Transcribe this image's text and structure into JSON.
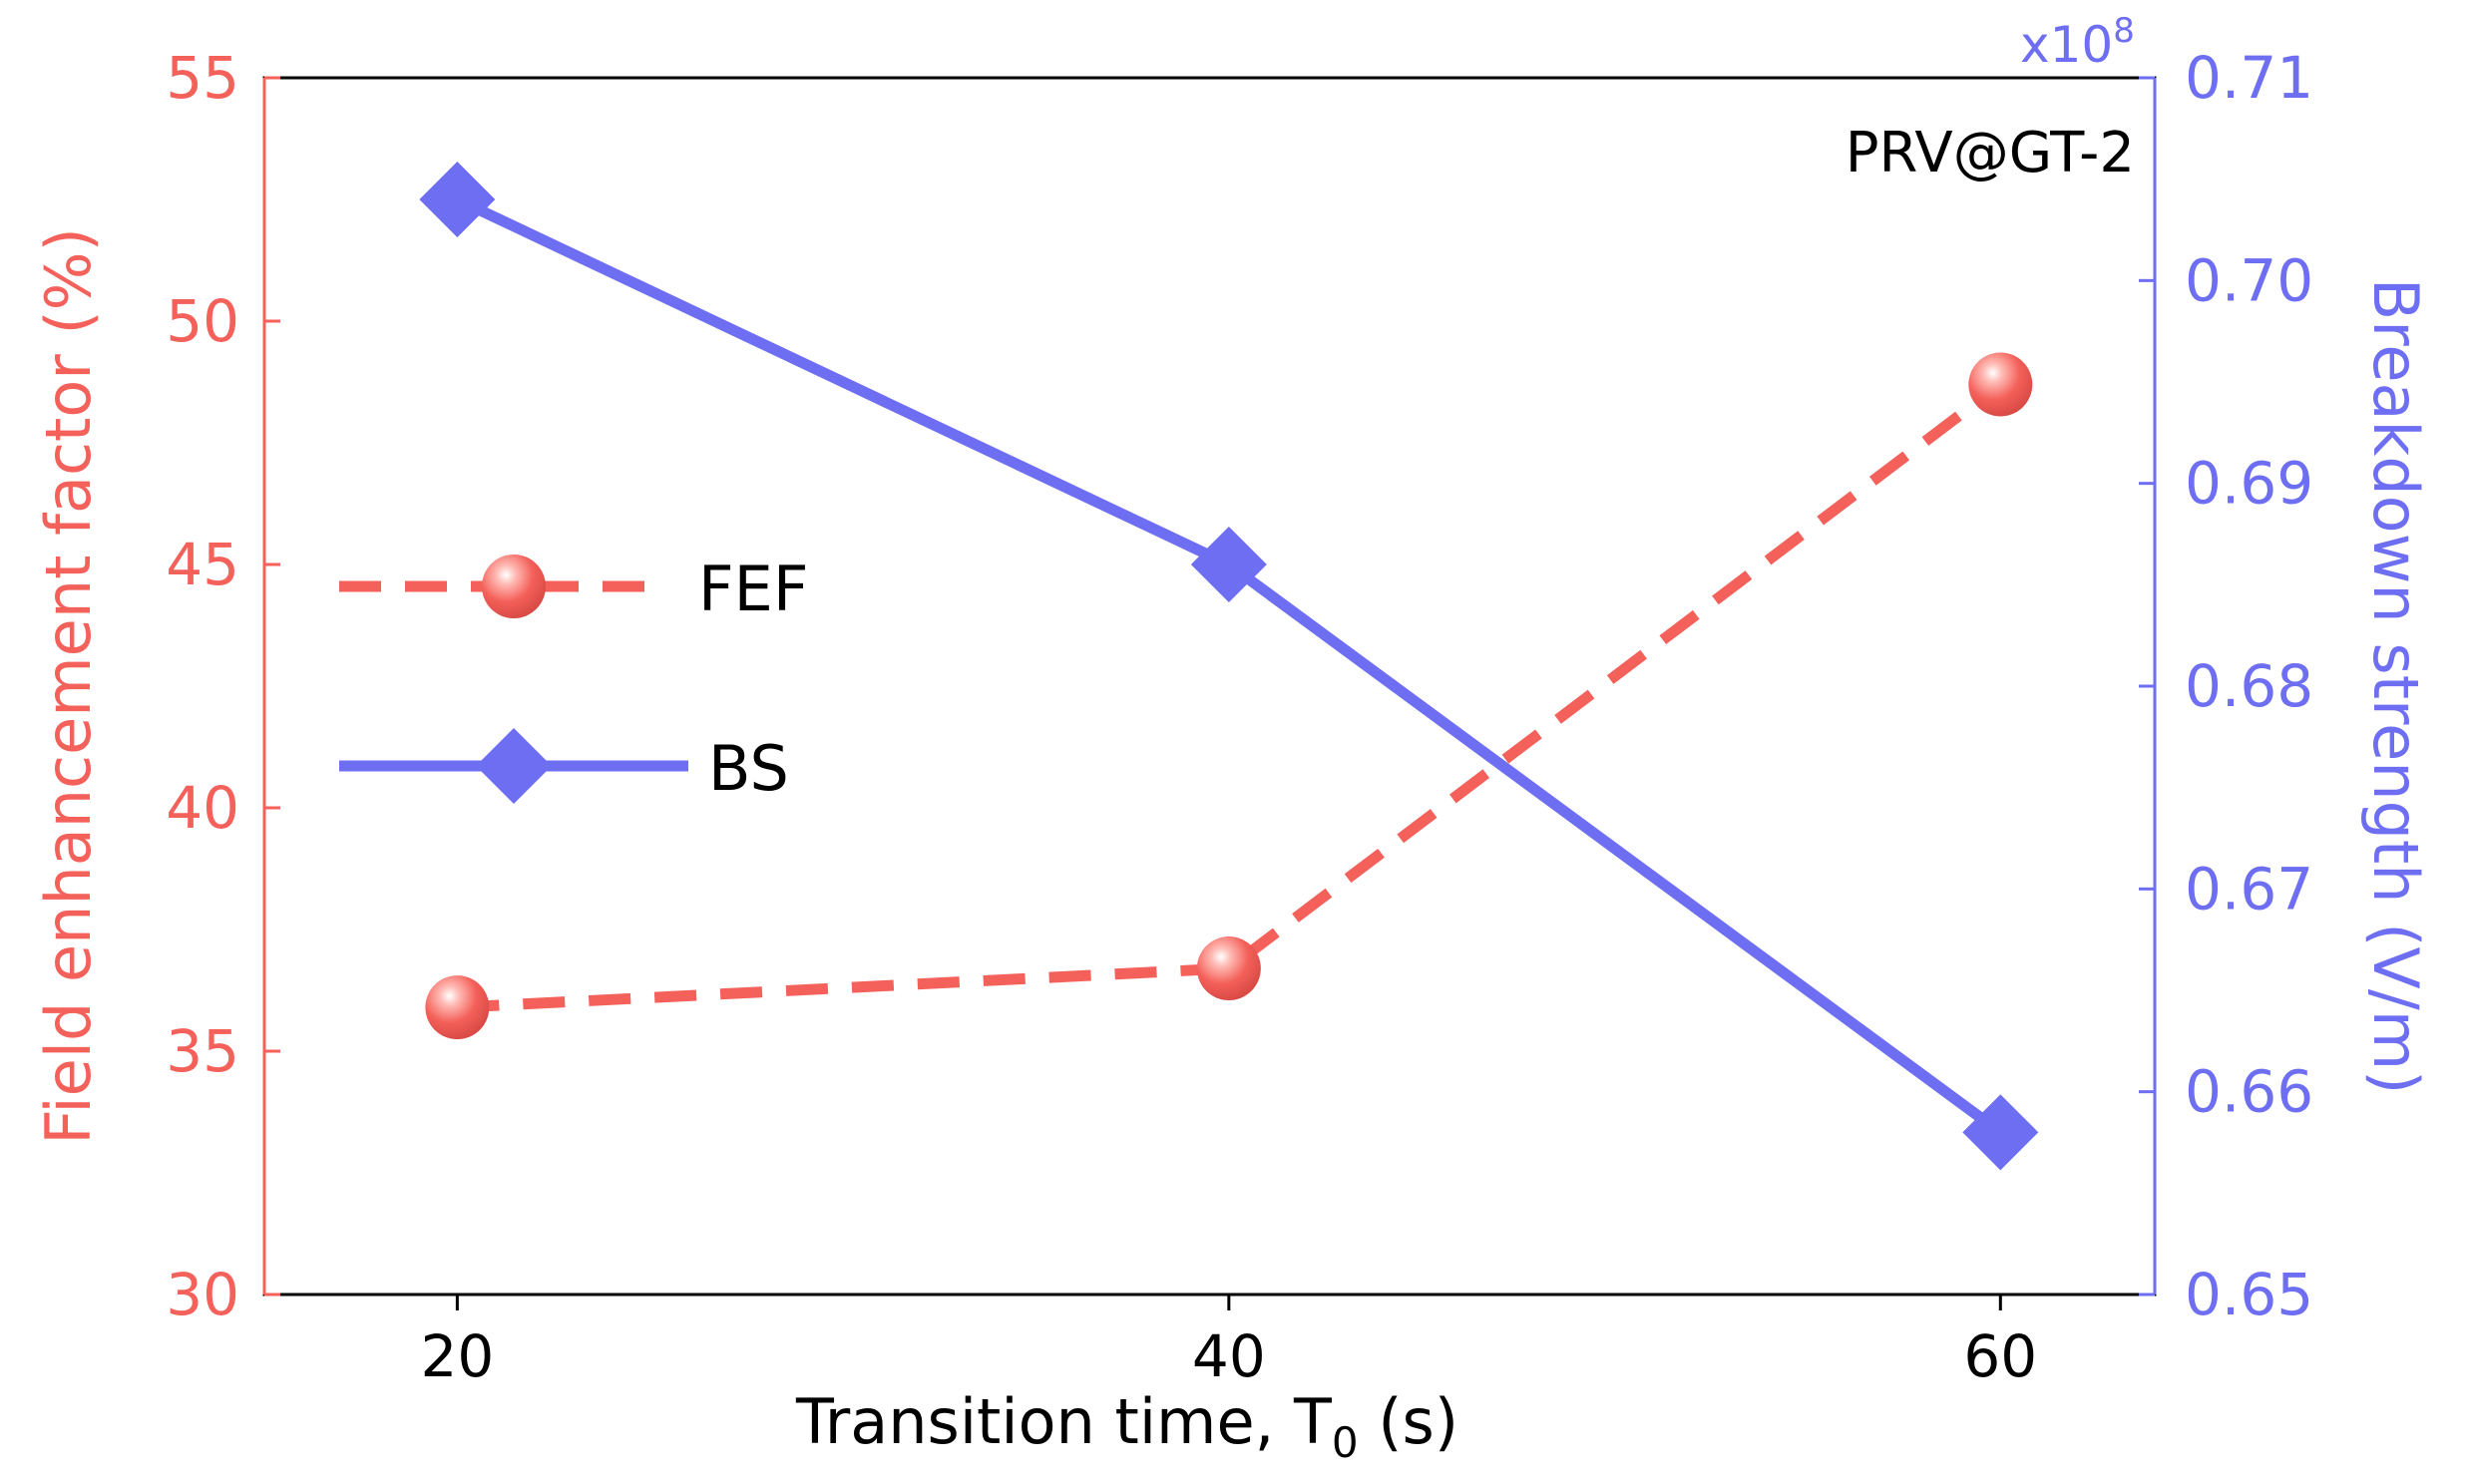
{
  "chart_data": {
    "type": "line",
    "annotation": "PRV@GT-2",
    "x": [
      20,
      40,
      60
    ],
    "xlim": [
      15,
      64
    ],
    "x_ticks": [
      "20",
      "40",
      "60"
    ],
    "xlabel_main": "Transition time, T",
    "xlabel_sub": "0",
    "xlabel_tail": " (s)",
    "y_left": {
      "label": "Field enhancement factor (%)",
      "lim": [
        30,
        55
      ],
      "ticks": [
        "30",
        "35",
        "40",
        "45",
        "50",
        "55"
      ],
      "color": "#f4605a"
    },
    "y_right": {
      "label": "Breakdown strength (V/m)",
      "lim": [
        0.65,
        0.71
      ],
      "ticks": [
        "0.65",
        "0.66",
        "0.67",
        "0.68",
        "0.69",
        "0.70",
        "0.71"
      ],
      "multiplier": "x10",
      "multiplier_exp": "8",
      "color": "#6e6ef2"
    },
    "series": [
      {
        "name": "FEF",
        "axis": "left",
        "style": "dashed",
        "marker": "sphere",
        "color": "#f4605a",
        "values": [
          35.9,
          36.7,
          48.7
        ]
      },
      {
        "name": "BS",
        "axis": "right",
        "style": "solid",
        "marker": "diamond",
        "color": "#6e6ef2",
        "values": [
          0.704,
          0.686,
          0.658
        ]
      }
    ]
  }
}
